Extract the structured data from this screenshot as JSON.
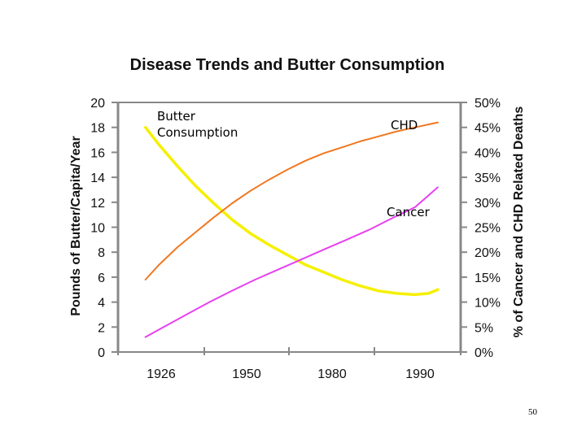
{
  "slide_number": "50",
  "chart_data": {
    "type": "line",
    "title": "Disease Trends and Butter Consumption",
    "ylabel": "Pounds of Butter/Capita/Year",
    "y2label": "% of Cancer and CHD Related Deaths",
    "x_ticks": [
      "1926",
      "1950",
      "1980",
      "1990"
    ],
    "xlim": [
      1920,
      1995
    ],
    "ylim": [
      0,
      20
    ],
    "y_ticks": [
      "0",
      "2",
      "4",
      "6",
      "8",
      "10",
      "12",
      "14",
      "16",
      "18",
      "20"
    ],
    "y2lim": [
      0,
      50
    ],
    "y2_ticks": [
      "0%",
      "5%",
      "10%",
      "15%",
      "20%",
      "25%",
      "30%",
      "35%",
      "40%",
      "45%",
      "50%"
    ],
    "grid": false,
    "series": [
      {
        "name": "Butter Consumption",
        "color": "#f5f000",
        "axis": "left",
        "x": [
          1926,
          1929,
          1933,
          1937,
          1941,
          1945,
          1949,
          1953,
          1957,
          1961,
          1965,
          1969,
          1973,
          1977,
          1981,
          1985,
          1988,
          1990
        ],
        "y": [
          18.0,
          16.6,
          14.9,
          13.3,
          11.9,
          10.6,
          9.5,
          8.6,
          7.8,
          7.0,
          6.4,
          5.8,
          5.3,
          4.9,
          4.7,
          4.6,
          4.7,
          5.0
        ]
      },
      {
        "name": "CHD",
        "color": "#f07820",
        "axis": "right",
        "x": [
          1926,
          1929,
          1933,
          1937,
          1941,
          1945,
          1949,
          1953,
          1957,
          1961,
          1965,
          1969,
          1973,
          1977,
          1981,
          1985,
          1988,
          1990
        ],
        "y": [
          14.5,
          17.5,
          21.0,
          24.0,
          27.0,
          29.8,
          32.3,
          34.5,
          36.5,
          38.3,
          39.8,
          41.0,
          42.2,
          43.2,
          44.2,
          45.0,
          45.6,
          46.0
        ]
      },
      {
        "name": "Cancer",
        "color": "#e840f0",
        "axis": "right",
        "x": [
          1926,
          1930,
          1935,
          1940,
          1945,
          1950,
          1955,
          1960,
          1965,
          1970,
          1975,
          1980,
          1985,
          1990
        ],
        "y": [
          3.0,
          5.0,
          7.5,
          10.0,
          12.3,
          14.5,
          16.5,
          18.5,
          20.5,
          22.5,
          24.5,
          26.8,
          29.0,
          33.0
        ]
      }
    ],
    "annotations": [
      {
        "text": "Butter Consumption",
        "series": "Butter Consumption"
      },
      {
        "text": "CHD",
        "series": "CHD"
      },
      {
        "text": "Cancer",
        "series": "Cancer"
      }
    ]
  }
}
